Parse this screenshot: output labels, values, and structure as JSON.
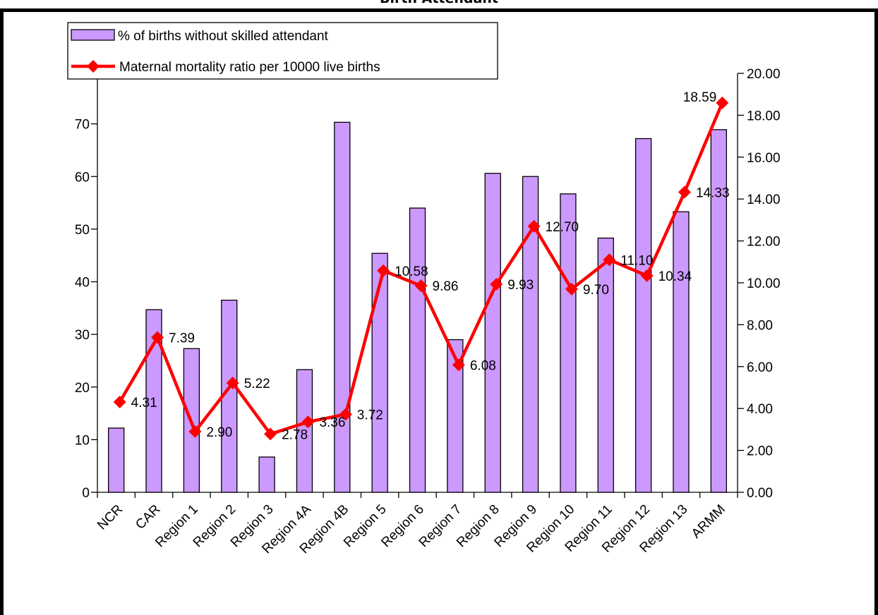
{
  "chart_data": {
    "type": "bar",
    "title": "Birth Attendant",
    "categories": [
      "NCR",
      "CAR",
      "Region 1",
      "Region 2",
      "Region 3",
      "Region 4A",
      "Region 4B",
      "Region 5",
      "Region 6",
      "Region 7",
      "Region 8",
      "Region 9",
      "Region 10",
      "Region 11",
      "Region 12",
      "Region 13",
      "ARMM"
    ],
    "series": [
      {
        "name": "% of births without skilled attendant",
        "type": "bar",
        "axis": "left",
        "color": "#cc99ff",
        "values": [
          12.2,
          34.7,
          27.3,
          36.5,
          6.7,
          23.3,
          70.3,
          45.4,
          54.0,
          29.0,
          60.6,
          60.0,
          56.7,
          48.3,
          67.2,
          53.3,
          68.9
        ]
      },
      {
        "name": "Maternal mortality ratio per 10000 live births",
        "type": "line",
        "axis": "right",
        "color": "#ff0000",
        "values": [
          4.31,
          7.39,
          2.9,
          5.22,
          2.78,
          3.36,
          3.72,
          10.58,
          9.86,
          6.08,
          9.93,
          12.7,
          9.7,
          11.1,
          10.34,
          14.33,
          18.59
        ],
        "labels": [
          "4.31",
          "7.39",
          "2.90",
          "5.22",
          "2.78",
          "3.36",
          "3.72",
          "10.58",
          "9.86",
          "6.08",
          "9.93",
          "12.70",
          "9.70",
          "11.10",
          "10.34",
          "14.33",
          "18.59"
        ]
      }
    ],
    "y_left": {
      "ylim": [
        0,
        80
      ],
      "ticks": [
        "0",
        "10",
        "20",
        "30",
        "40",
        "50",
        "60",
        "70"
      ]
    },
    "y_right": {
      "ylim": [
        0,
        20
      ],
      "ticks": [
        "0.00",
        "2.00",
        "4.00",
        "6.00",
        "8.00",
        "10.00",
        "12.00",
        "14.00",
        "16.00",
        "18.00",
        "20.00"
      ]
    },
    "grid": false,
    "legend_position": "top-left"
  }
}
